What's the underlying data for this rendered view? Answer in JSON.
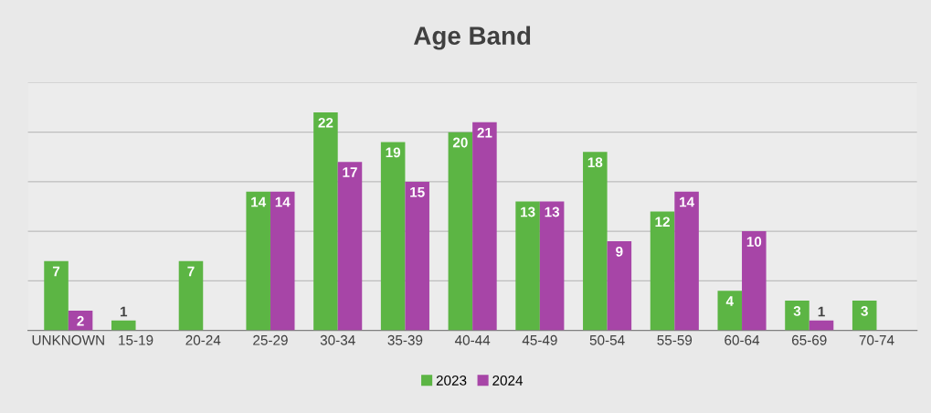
{
  "chart_data": {
    "type": "bar",
    "title": "Age Band",
    "categories": [
      "UNKNOWN",
      "15-19",
      "20-24",
      "25-29",
      "30-34",
      "35-39",
      "40-44",
      "45-49",
      "50-54",
      "55-59",
      "60-64",
      "65-69",
      "70-74"
    ],
    "series": [
      {
        "name": "2023",
        "color": "#5cb544",
        "values": [
          7,
          1,
          7,
          14,
          22,
          19,
          20,
          13,
          18,
          12,
          4,
          3,
          3
        ]
      },
      {
        "name": "2024",
        "color": "#a745a7",
        "values": [
          2,
          null,
          null,
          14,
          17,
          15,
          21,
          13,
          9,
          14,
          10,
          1,
          null
        ]
      }
    ],
    "ylim": [
      0,
      25
    ],
    "yticks": [
      {
        "value": 0,
        "label": null
      },
      {
        "value": 5,
        "label": null
      },
      {
        "value": 10,
        "label": null
      },
      {
        "value": 15,
        "label": null
      },
      {
        "value": 20,
        "label": null
      },
      {
        "value": 25,
        "label": null
      }
    ],
    "grid": "y",
    "tick_labels": "x",
    "data_labels": true,
    "legend": "bottom"
  }
}
